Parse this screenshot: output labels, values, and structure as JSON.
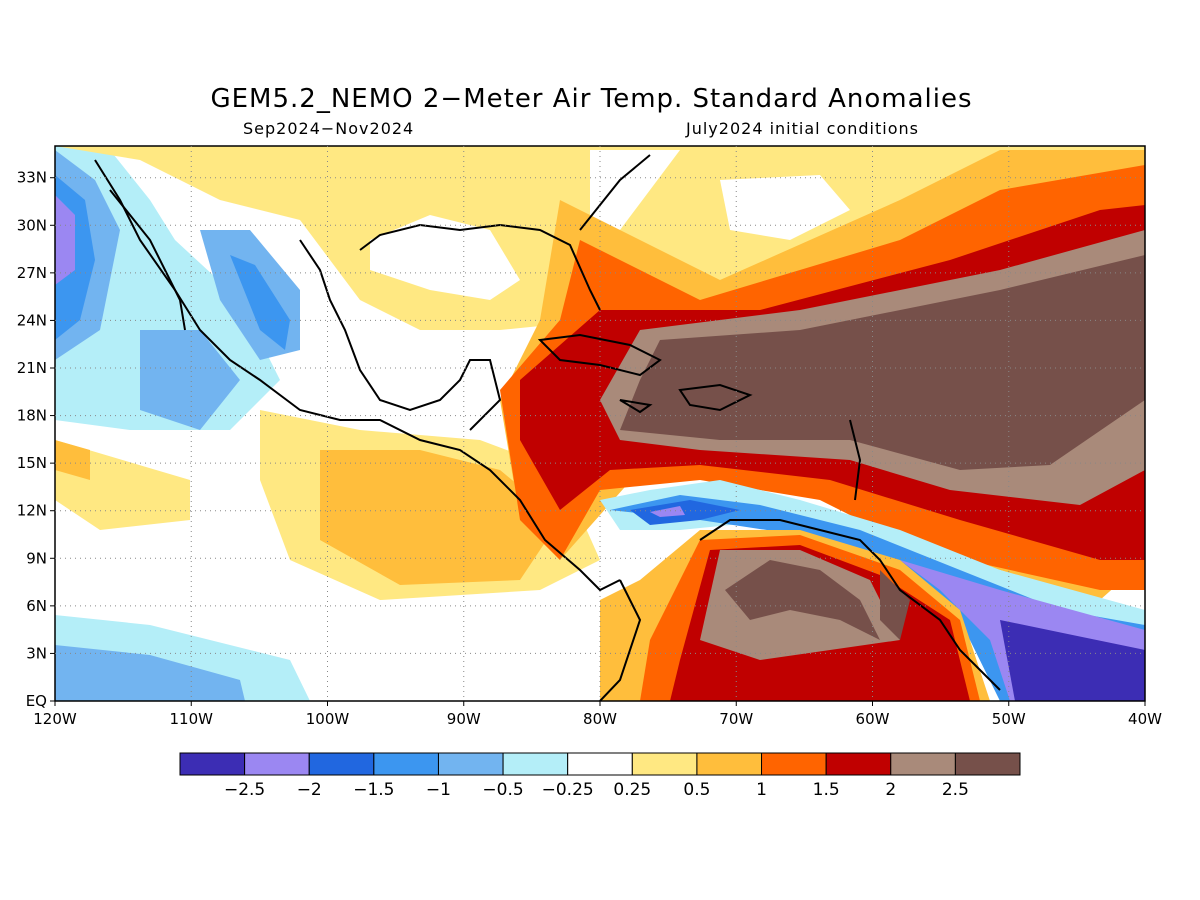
{
  "title": "GEM5.2_NEMO 2−Meter Air Temp. Standard Anomalies",
  "subtitle_left": "Sep2024−Nov2024",
  "subtitle_right": "July2024 initial conditions",
  "map": {
    "region": "Gulf of Mexico / Caribbean / tropical Atlantic",
    "lon_range": [
      -120,
      -40
    ],
    "lat_range": [
      0,
      35
    ],
    "lon_ticks": [
      "120W",
      "110W",
      "100W",
      "90W",
      "80W",
      "70W",
      "60W",
      "50W",
      "40W"
    ],
    "lat_ticks": [
      "EQ",
      "3N",
      "6N",
      "9N",
      "12N",
      "15N",
      "18N",
      "21N",
      "24N",
      "27N",
      "30N",
      "33N"
    ],
    "grid": "dotted"
  },
  "colorbar": {
    "labels": [
      "−2.5",
      "−2",
      "−1.5",
      "−1",
      "−0.5",
      "−0.25",
      "0.25",
      "0.5",
      "1",
      "1.5",
      "2",
      "2.5"
    ],
    "colors": [
      "#3c2db4",
      "#9b87f2",
      "#2167e0",
      "#3c96f0",
      "#72b4f0",
      "#b4eef8",
      "#ffffff",
      "#ffe882",
      "#ffbe3c",
      "#ff6400",
      "#c00000",
      "#a98a7a",
      "#76504a"
    ]
  },
  "chart_data": {
    "type": "heatmap",
    "variable": "2-Meter Air Temp. Standard Anomalies",
    "levels": [
      -2.5,
      -2,
      -1.5,
      -1,
      -0.5,
      -0.25,
      0.25,
      0.5,
      1,
      1.5,
      2,
      2.5
    ]
  }
}
